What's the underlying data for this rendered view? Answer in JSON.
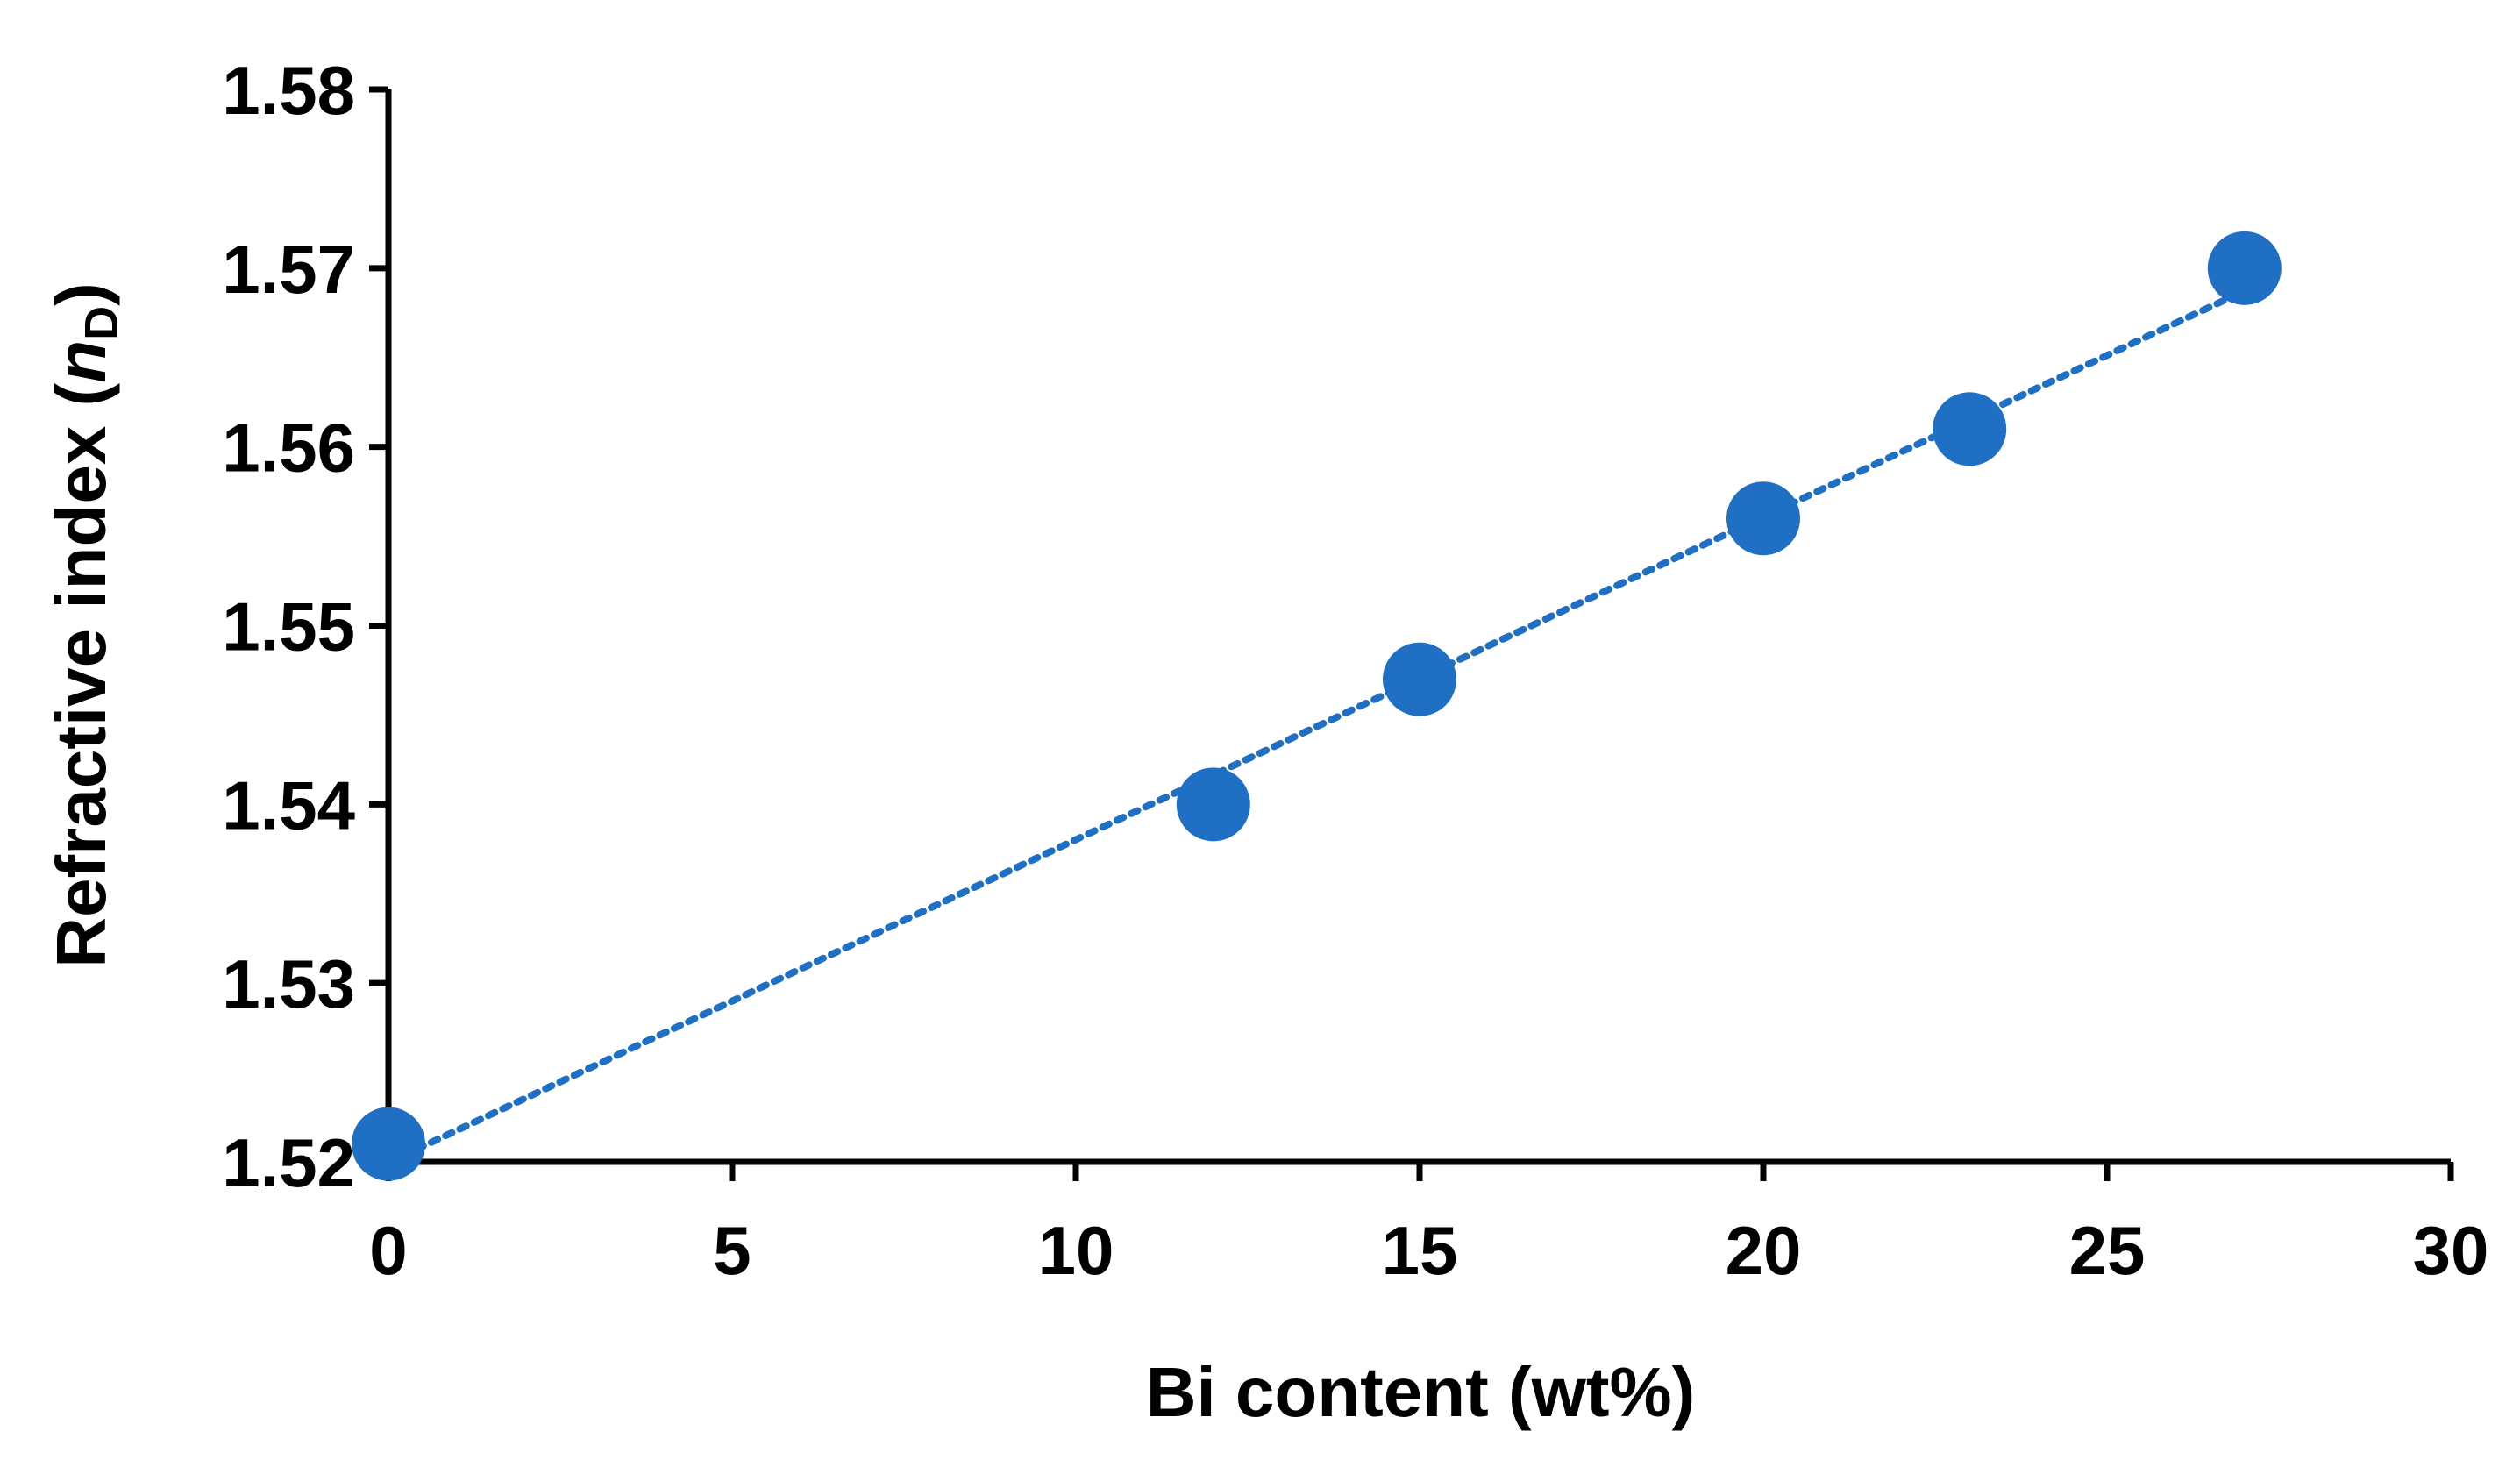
{
  "chart_data": {
    "type": "scatter",
    "title": "",
    "xlabel": "Bi content (wt%)",
    "ylabel": {
      "main": "Refractive index (",
      "symbol": "n",
      "subscript": "D",
      "close": ")"
    },
    "xlim": [
      0,
      30
    ],
    "ylim": [
      1.52,
      1.58
    ],
    "x_ticks": [
      "0",
      "5",
      "10",
      "15",
      "20",
      "25",
      "30"
    ],
    "y_ticks": [
      "1.52",
      "1.53",
      "1.54",
      "1.55",
      "1.56",
      "1.57",
      "1.58"
    ],
    "series": [
      {
        "x": [
          0,
          12,
          15,
          20,
          23,
          27
        ],
        "y": [
          1.521,
          1.54,
          1.547,
          1.556,
          1.561,
          1.57
        ],
        "color": "#1f6fc5",
        "trendline": "dotted linear"
      }
    ],
    "grid": false,
    "legend": "none"
  }
}
